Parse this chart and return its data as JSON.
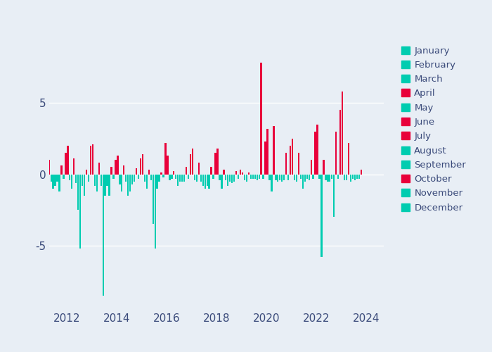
{
  "plot_bg_color": "#e8eef5",
  "outer_bg_color": "#e8eef5",
  "months": [
    "January",
    "February",
    "March",
    "April",
    "May",
    "June",
    "July",
    "August",
    "September",
    "October",
    "November",
    "December"
  ],
  "month_colors": {
    "January": "#00ccb0",
    "February": "#00ccb0",
    "March": "#00ccb0",
    "April": "#e8003a",
    "May": "#00ccb0",
    "June": "#e8003a",
    "July": "#e8003a",
    "August": "#00ccb0",
    "September": "#00ccb0",
    "October": "#e8003a",
    "November": "#00ccb0",
    "December": "#00ccb0"
  },
  "data": [
    {
      "year": 2011,
      "month": 4,
      "value": 0.5
    },
    {
      "year": 2011,
      "month": 5,
      "value": -0.3
    },
    {
      "year": 2011,
      "month": 6,
      "value": 0.7
    },
    {
      "year": 2011,
      "month": 7,
      "value": 0.9
    },
    {
      "year": 2011,
      "month": 8,
      "value": -0.4
    },
    {
      "year": 2011,
      "month": 9,
      "value": -0.5
    },
    {
      "year": 2011,
      "month": 10,
      "value": 1.0
    },
    {
      "year": 2011,
      "month": 11,
      "value": -0.5
    },
    {
      "year": 2011,
      "month": 12,
      "value": -1.0
    },
    {
      "year": 2012,
      "month": 1,
      "value": -0.8
    },
    {
      "year": 2012,
      "month": 2,
      "value": -0.5
    },
    {
      "year": 2012,
      "month": 3,
      "value": -1.2
    },
    {
      "year": 2012,
      "month": 4,
      "value": 0.6
    },
    {
      "year": 2012,
      "month": 5,
      "value": -0.3
    },
    {
      "year": 2012,
      "month": 6,
      "value": 1.5
    },
    {
      "year": 2012,
      "month": 7,
      "value": 2.0
    },
    {
      "year": 2012,
      "month": 8,
      "value": -0.4
    },
    {
      "year": 2012,
      "month": 9,
      "value": -1.0
    },
    {
      "year": 2012,
      "month": 10,
      "value": 1.1
    },
    {
      "year": 2012,
      "month": 11,
      "value": -0.6
    },
    {
      "year": 2012,
      "month": 12,
      "value": -2.5
    },
    {
      "year": 2013,
      "month": 1,
      "value": -5.2
    },
    {
      "year": 2013,
      "month": 2,
      "value": -0.8
    },
    {
      "year": 2013,
      "month": 3,
      "value": -1.5
    },
    {
      "year": 2013,
      "month": 4,
      "value": 0.3
    },
    {
      "year": 2013,
      "month": 5,
      "value": -0.5
    },
    {
      "year": 2013,
      "month": 6,
      "value": 2.0
    },
    {
      "year": 2013,
      "month": 7,
      "value": 2.1
    },
    {
      "year": 2013,
      "month": 8,
      "value": -0.8
    },
    {
      "year": 2013,
      "month": 9,
      "value": -1.2
    },
    {
      "year": 2013,
      "month": 10,
      "value": 0.8
    },
    {
      "year": 2013,
      "month": 11,
      "value": -0.8
    },
    {
      "year": 2013,
      "month": 12,
      "value": -8.5
    },
    {
      "year": 2014,
      "month": 1,
      "value": -1.5
    },
    {
      "year": 2014,
      "month": 2,
      "value": -0.8
    },
    {
      "year": 2014,
      "month": 3,
      "value": -1.5
    },
    {
      "year": 2014,
      "month": 4,
      "value": 0.5
    },
    {
      "year": 2014,
      "month": 5,
      "value": -0.3
    },
    {
      "year": 2014,
      "month": 6,
      "value": 1.0
    },
    {
      "year": 2014,
      "month": 7,
      "value": 1.3
    },
    {
      "year": 2014,
      "month": 8,
      "value": -0.7
    },
    {
      "year": 2014,
      "month": 9,
      "value": -1.2
    },
    {
      "year": 2014,
      "month": 10,
      "value": 0.6
    },
    {
      "year": 2014,
      "month": 11,
      "value": -0.5
    },
    {
      "year": 2014,
      "month": 12,
      "value": -1.5
    },
    {
      "year": 2015,
      "month": 1,
      "value": -1.2
    },
    {
      "year": 2015,
      "month": 2,
      "value": -0.7
    },
    {
      "year": 2015,
      "month": 3,
      "value": -0.5
    },
    {
      "year": 2015,
      "month": 4,
      "value": 0.4
    },
    {
      "year": 2015,
      "month": 5,
      "value": -0.3
    },
    {
      "year": 2015,
      "month": 6,
      "value": 1.1
    },
    {
      "year": 2015,
      "month": 7,
      "value": 1.4
    },
    {
      "year": 2015,
      "month": 8,
      "value": -0.5
    },
    {
      "year": 2015,
      "month": 9,
      "value": -1.0
    },
    {
      "year": 2015,
      "month": 10,
      "value": 0.3
    },
    {
      "year": 2015,
      "month": 11,
      "value": -0.4
    },
    {
      "year": 2015,
      "month": 12,
      "value": -3.5
    },
    {
      "year": 2016,
      "month": 1,
      "value": -5.2
    },
    {
      "year": 2016,
      "month": 2,
      "value": -1.0
    },
    {
      "year": 2016,
      "month": 3,
      "value": -0.5
    },
    {
      "year": 2016,
      "month": 4,
      "value": 0.1
    },
    {
      "year": 2016,
      "month": 5,
      "value": -0.2
    },
    {
      "year": 2016,
      "month": 6,
      "value": 2.2
    },
    {
      "year": 2016,
      "month": 7,
      "value": 1.3
    },
    {
      "year": 2016,
      "month": 8,
      "value": -0.4
    },
    {
      "year": 2016,
      "month": 9,
      "value": -0.3
    },
    {
      "year": 2016,
      "month": 10,
      "value": 0.2
    },
    {
      "year": 2016,
      "month": 11,
      "value": -0.3
    },
    {
      "year": 2016,
      "month": 12,
      "value": -0.8
    },
    {
      "year": 2017,
      "month": 1,
      "value": -0.5
    },
    {
      "year": 2017,
      "month": 2,
      "value": -0.5
    },
    {
      "year": 2017,
      "month": 3,
      "value": -0.5
    },
    {
      "year": 2017,
      "month": 4,
      "value": 0.5
    },
    {
      "year": 2017,
      "month": 5,
      "value": -0.3
    },
    {
      "year": 2017,
      "month": 6,
      "value": 1.4
    },
    {
      "year": 2017,
      "month": 7,
      "value": 1.8
    },
    {
      "year": 2017,
      "month": 8,
      "value": -0.4
    },
    {
      "year": 2017,
      "month": 9,
      "value": -0.5
    },
    {
      "year": 2017,
      "month": 10,
      "value": 0.8
    },
    {
      "year": 2017,
      "month": 11,
      "value": -0.5
    },
    {
      "year": 2017,
      "month": 12,
      "value": -0.8
    },
    {
      "year": 2018,
      "month": 1,
      "value": -1.0
    },
    {
      "year": 2018,
      "month": 2,
      "value": -0.8
    },
    {
      "year": 2018,
      "month": 3,
      "value": -1.0
    },
    {
      "year": 2018,
      "month": 4,
      "value": 0.5
    },
    {
      "year": 2018,
      "month": 5,
      "value": -0.3
    },
    {
      "year": 2018,
      "month": 6,
      "value": 1.5
    },
    {
      "year": 2018,
      "month": 7,
      "value": 1.8
    },
    {
      "year": 2018,
      "month": 8,
      "value": -0.4
    },
    {
      "year": 2018,
      "month": 9,
      "value": -1.0
    },
    {
      "year": 2018,
      "month": 10,
      "value": 0.3
    },
    {
      "year": 2018,
      "month": 11,
      "value": -0.4
    },
    {
      "year": 2018,
      "month": 12,
      "value": -0.8
    },
    {
      "year": 2019,
      "month": 1,
      "value": -0.5
    },
    {
      "year": 2019,
      "month": 2,
      "value": -0.6
    },
    {
      "year": 2019,
      "month": 3,
      "value": -0.5
    },
    {
      "year": 2019,
      "month": 4,
      "value": 0.2
    },
    {
      "year": 2019,
      "month": 5,
      "value": -0.3
    },
    {
      "year": 2019,
      "month": 6,
      "value": 0.3
    },
    {
      "year": 2019,
      "month": 7,
      "value": 0.1
    },
    {
      "year": 2019,
      "month": 8,
      "value": -0.4
    },
    {
      "year": 2019,
      "month": 9,
      "value": -0.5
    },
    {
      "year": 2019,
      "month": 10,
      "value": 0.1
    },
    {
      "year": 2019,
      "month": 11,
      "value": -0.3
    },
    {
      "year": 2019,
      "month": 12,
      "value": -0.3
    },
    {
      "year": 2020,
      "month": 1,
      "value": -0.3
    },
    {
      "year": 2020,
      "month": 2,
      "value": -0.4
    },
    {
      "year": 2020,
      "month": 3,
      "value": -0.3
    },
    {
      "year": 2020,
      "month": 4,
      "value": 7.8
    },
    {
      "year": 2020,
      "month": 5,
      "value": -0.3
    },
    {
      "year": 2020,
      "month": 6,
      "value": 2.3
    },
    {
      "year": 2020,
      "month": 7,
      "value": 3.2
    },
    {
      "year": 2020,
      "month": 8,
      "value": -0.4
    },
    {
      "year": 2020,
      "month": 9,
      "value": -1.2
    },
    {
      "year": 2020,
      "month": 10,
      "value": 3.4
    },
    {
      "year": 2020,
      "month": 11,
      "value": -0.4
    },
    {
      "year": 2020,
      "month": 12,
      "value": -0.5
    },
    {
      "year": 2021,
      "month": 1,
      "value": -0.4
    },
    {
      "year": 2021,
      "month": 2,
      "value": -0.5
    },
    {
      "year": 2021,
      "month": 3,
      "value": -0.4
    },
    {
      "year": 2021,
      "month": 4,
      "value": 1.5
    },
    {
      "year": 2021,
      "month": 5,
      "value": -0.4
    },
    {
      "year": 2021,
      "month": 6,
      "value": 2.0
    },
    {
      "year": 2021,
      "month": 7,
      "value": 2.5
    },
    {
      "year": 2021,
      "month": 8,
      "value": -0.4
    },
    {
      "year": 2021,
      "month": 9,
      "value": -0.5
    },
    {
      "year": 2021,
      "month": 10,
      "value": 1.5
    },
    {
      "year": 2021,
      "month": 11,
      "value": -0.3
    },
    {
      "year": 2021,
      "month": 12,
      "value": -1.0
    },
    {
      "year": 2022,
      "month": 1,
      "value": -0.5
    },
    {
      "year": 2022,
      "month": 2,
      "value": -0.3
    },
    {
      "year": 2022,
      "month": 3,
      "value": -0.4
    },
    {
      "year": 2022,
      "month": 4,
      "value": 1.0
    },
    {
      "year": 2022,
      "month": 5,
      "value": -0.3
    },
    {
      "year": 2022,
      "month": 6,
      "value": 3.0
    },
    {
      "year": 2022,
      "month": 7,
      "value": 3.5
    },
    {
      "year": 2022,
      "month": 8,
      "value": -0.3
    },
    {
      "year": 2022,
      "month": 9,
      "value": -5.8
    },
    {
      "year": 2022,
      "month": 10,
      "value": 1.0
    },
    {
      "year": 2022,
      "month": 11,
      "value": -0.4
    },
    {
      "year": 2022,
      "month": 12,
      "value": -0.5
    },
    {
      "year": 2023,
      "month": 1,
      "value": -0.5
    },
    {
      "year": 2023,
      "month": 2,
      "value": -0.3
    },
    {
      "year": 2023,
      "month": 3,
      "value": -3.0
    },
    {
      "year": 2023,
      "month": 4,
      "value": 3.0
    },
    {
      "year": 2023,
      "month": 5,
      "value": -0.3
    },
    {
      "year": 2023,
      "month": 6,
      "value": 4.5
    },
    {
      "year": 2023,
      "month": 7,
      "value": 5.8
    },
    {
      "year": 2023,
      "month": 8,
      "value": -0.4
    },
    {
      "year": 2023,
      "month": 9,
      "value": -0.4
    },
    {
      "year": 2023,
      "month": 10,
      "value": 2.2
    },
    {
      "year": 2023,
      "month": 11,
      "value": -0.5
    },
    {
      "year": 2023,
      "month": 12,
      "value": -0.3
    },
    {
      "year": 2024,
      "month": 1,
      "value": -0.4
    },
    {
      "year": 2024,
      "month": 2,
      "value": -0.3
    },
    {
      "year": 2024,
      "month": 3,
      "value": -0.3
    },
    {
      "year": 2024,
      "month": 4,
      "value": 0.3
    }
  ],
  "ylim": [
    -9.5,
    9.5
  ],
  "yticks": [
    -5,
    0,
    5
  ],
  "ytick_labels": [
    "-5",
    "0",
    "5"
  ],
  "xticks": [
    2012,
    2014,
    2016,
    2018,
    2020,
    2022,
    2024
  ],
  "xlim_start": 2011.3,
  "xlim_end": 2024.7,
  "bar_width": 0.065,
  "legend_label_color": "#3a4a7a",
  "tick_color": "#3a4a7a",
  "grid_color": "white",
  "figsize": [
    7.0,
    5.0
  ],
  "dpi": 100
}
